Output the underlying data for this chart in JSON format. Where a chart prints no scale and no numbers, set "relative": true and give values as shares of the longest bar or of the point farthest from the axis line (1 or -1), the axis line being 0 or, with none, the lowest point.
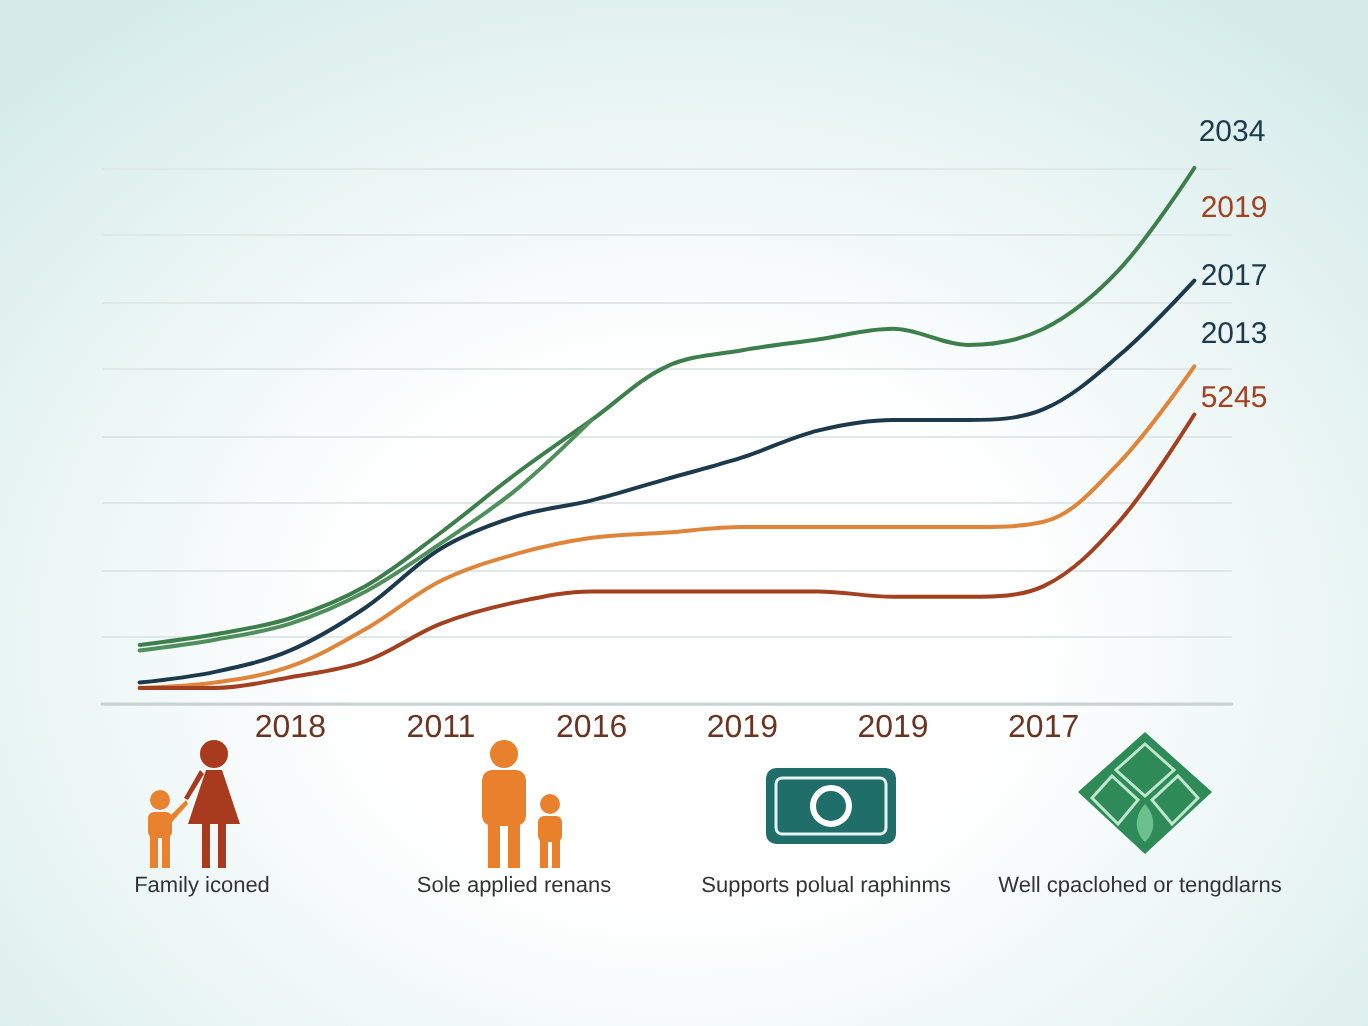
{
  "chart_data": {
    "type": "line",
    "relative": true,
    "grid": "y",
    "categories": [
      null,
      null,
      "2018",
      null,
      "2011",
      null,
      "2016",
      null,
      "2019",
      null,
      "2019",
      null,
      "2017",
      null,
      null
    ],
    "series": [
      {
        "color": "#3d7f4c",
        "values": [
          0.11,
          0.13,
          0.16,
          0.22,
          0.32,
          0.43,
          0.53,
          0.63,
          0.66,
          0.68,
          0.7,
          0.67,
          0.7,
          0.81,
          1
        ]
      },
      {
        "color": "#4f8f5c",
        "values": [
          0.1,
          0.12,
          0.15,
          0.21,
          0.3,
          0.4,
          0.53,
          null,
          null,
          null,
          null,
          null,
          null,
          null,
          null
        ]
      },
      {
        "color": "#1c3a4c",
        "values": [
          0.04,
          0.06,
          0.1,
          0.18,
          0.29,
          0.35,
          0.38,
          0.42,
          0.46,
          0.51,
          0.53,
          0.53,
          0.55,
          0.65,
          0.79
        ]
      },
      {
        "color": "#e0843a",
        "values": [
          0.03,
          0.04,
          0.07,
          0.14,
          0.23,
          0.28,
          0.31,
          0.32,
          0.33,
          0.33,
          0.33,
          0.33,
          0.34,
          0.45,
          0.63
        ]
      },
      {
        "color": "#a3401f",
        "values": [
          0.03,
          0.03,
          0.05,
          0.08,
          0.15,
          0.19,
          0.21,
          0.21,
          0.21,
          0.21,
          0.2,
          0.2,
          0.22,
          0.34,
          0.54
        ]
      }
    ],
    "annotations": [
      "2034",
      "2019",
      "2017",
      "2013",
      "5245",
      "Family iconed",
      "Sole applied renans",
      "Supports polual raphinms",
      "Well cpaclohed or tengdlarns"
    ]
  }
}
